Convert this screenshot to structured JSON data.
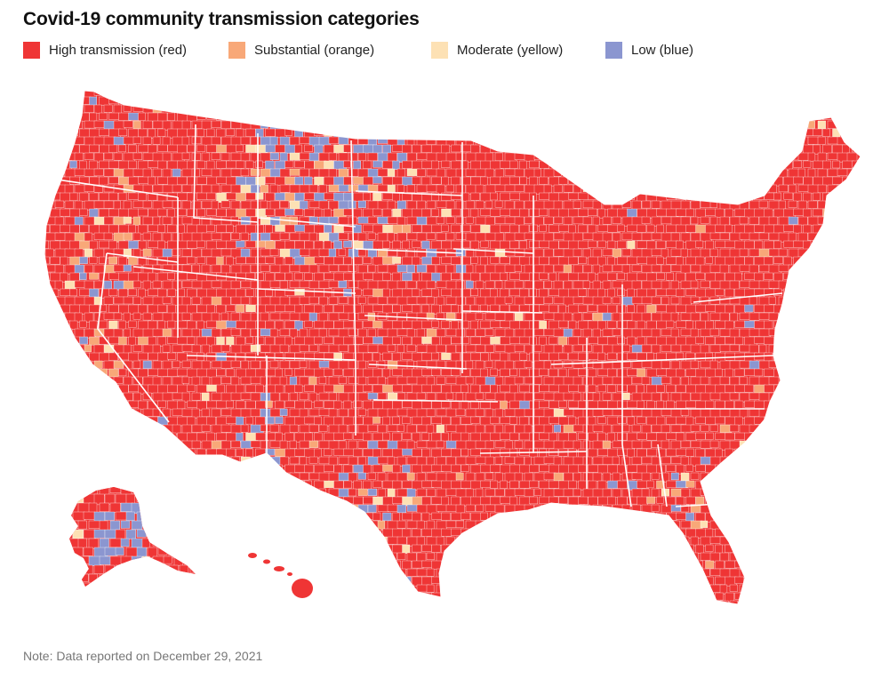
{
  "title": "Covid-19 community transmission categories",
  "legend": [
    {
      "label": "High transmission (red)",
      "color": "#ef3535"
    },
    {
      "label": "Substantial (orange)",
      "color": "#f8a878"
    },
    {
      "label": "Moderate (yellow)",
      "color": "#fde1b4"
    },
    {
      "label": "Low (blue)",
      "color": "#8b96d0"
    }
  ],
  "colors": {
    "high": "#ef3535",
    "substantial": "#f8a878",
    "moderate": "#fde1b4",
    "low": "#8b96d0",
    "no_data": "#cccccc",
    "border": "#ffffff"
  },
  "note": "Note: Data reported on December 29, 2021"
}
